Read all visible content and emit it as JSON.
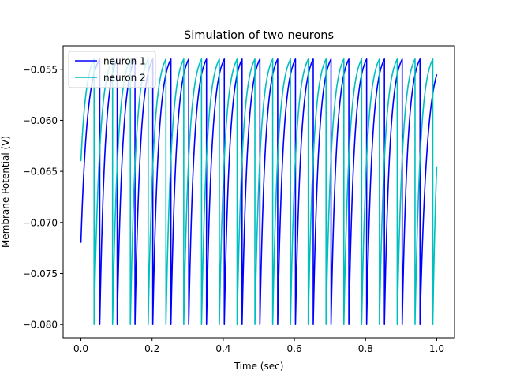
{
  "chart_data": {
    "type": "line",
    "title": "Simulation of two neurons",
    "xlabel": "Time (sec)",
    "ylabel": "Membrane Potential (V)",
    "xlim": [
      -0.05,
      1.05
    ],
    "ylim": [
      -0.0813,
      -0.0527
    ],
    "xticks": [
      0.0,
      0.2,
      0.4,
      0.6,
      0.8,
      1.0
    ],
    "xtick_labels": [
      "0.0",
      "0.2",
      "0.4",
      "0.6",
      "0.8",
      "1.0"
    ],
    "yticks": [
      -0.08,
      -0.075,
      -0.07,
      -0.065,
      -0.06,
      -0.055
    ],
    "ytick_labels": [
      "−0.080",
      "−0.075",
      "−0.070",
      "−0.065",
      "−0.060",
      "−0.055"
    ],
    "grid": false,
    "legend_position": "upper-left",
    "v_reset": -0.08,
    "v_threshold": -0.054,
    "v_inf": -0.053,
    "series": [
      {
        "name": "neuron 1",
        "color": "#0000ff",
        "v_start": -0.072,
        "spike_times": [
          0.053,
          0.102,
          0.152,
          0.202,
          0.253,
          0.303,
          0.353,
          0.403,
          0.453,
          0.503,
          0.553,
          0.603,
          0.653,
          0.703,
          0.753,
          0.803,
          0.853,
          0.903,
          0.953
        ],
        "v_end": -0.0555
      },
      {
        "name": "neuron 2",
        "color": "#00bfbf",
        "v_start": -0.064,
        "spike_times": [
          0.037,
          0.089,
          0.139,
          0.189,
          0.239,
          0.289,
          0.339,
          0.389,
          0.439,
          0.489,
          0.539,
          0.589,
          0.639,
          0.689,
          0.739,
          0.789,
          0.839,
          0.889,
          0.939,
          0.989
        ],
        "v_end": -0.0645
      }
    ]
  }
}
